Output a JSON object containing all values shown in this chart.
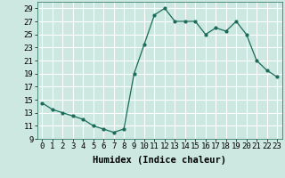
{
  "x": [
    0,
    1,
    2,
    3,
    4,
    5,
    6,
    7,
    8,
    9,
    10,
    11,
    12,
    13,
    14,
    15,
    16,
    17,
    18,
    19,
    20,
    21,
    22,
    23
  ],
  "y": [
    14.5,
    13.5,
    13.0,
    12.5,
    12.0,
    11.0,
    10.5,
    10.0,
    10.5,
    19.0,
    23.5,
    28.0,
    29.0,
    27.0,
    27.0,
    27.0,
    25.0,
    26.0,
    25.5,
    27.0,
    25.0,
    21.0,
    19.5,
    18.5
  ],
  "xlabel": "Humidex (Indice chaleur)",
  "xlim": [
    -0.5,
    23.5
  ],
  "ylim": [
    9,
    30
  ],
  "yticks": [
    9,
    11,
    13,
    15,
    17,
    19,
    21,
    23,
    25,
    27,
    29
  ],
  "xticks": [
    0,
    1,
    2,
    3,
    4,
    5,
    6,
    7,
    8,
    9,
    10,
    11,
    12,
    13,
    14,
    15,
    16,
    17,
    18,
    19,
    20,
    21,
    22,
    23
  ],
  "line_color": "#1a6b5a",
  "marker": "o",
  "marker_size": 2,
  "bg_color": "#cce8e0",
  "grid_color": "#ffffff",
  "axis_label_fontsize": 7.5,
  "tick_fontsize": 6.5
}
